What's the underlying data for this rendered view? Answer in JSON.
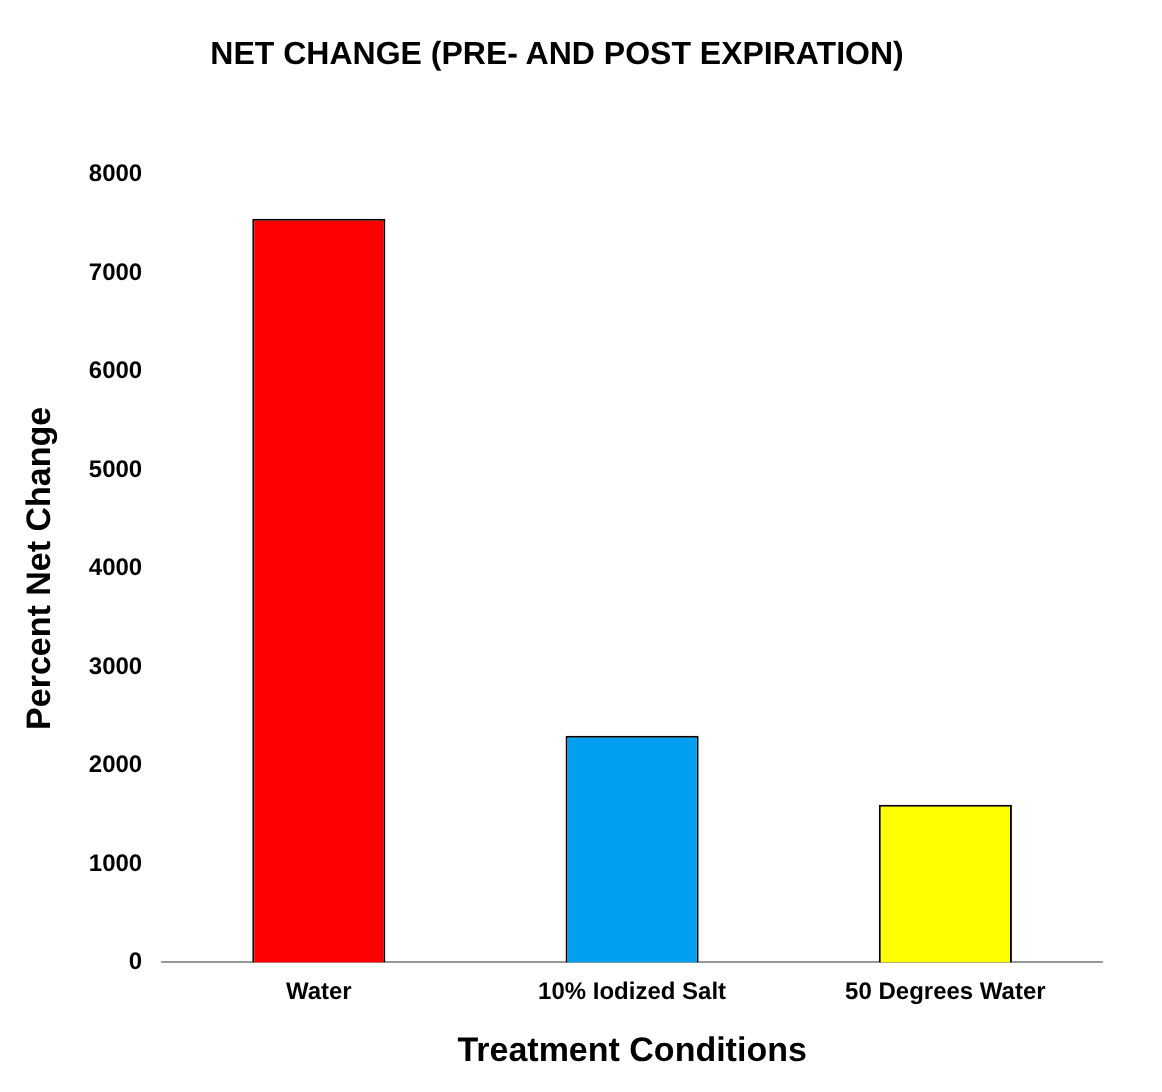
{
  "chart_data": {
    "type": "bar",
    "title": "NET CHANGE (PRE- AND POST EXPIRATION)",
    "xlabel": "Treatment Conditions",
    "ylabel": "Percent Net Change",
    "categories": [
      "Water",
      "10% Iodized Salt",
      "50 Degrees Water"
    ],
    "values": [
      7550,
      2300,
      1600
    ],
    "colors": [
      "#ff0000",
      "#00a0f0",
      "#ffff00"
    ],
    "ylim": [
      0,
      8000
    ],
    "yticks": [
      0,
      1000,
      2000,
      3000,
      4000,
      5000,
      6000,
      7000,
      8000
    ],
    "grid": false
  }
}
